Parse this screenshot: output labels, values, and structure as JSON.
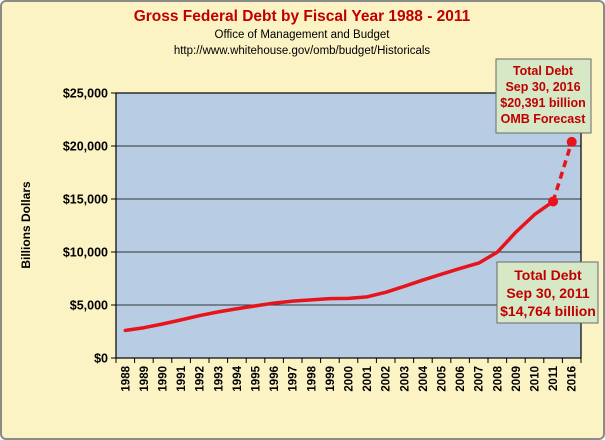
{
  "colors": {
    "background": "#fbf3c4",
    "plot_area": "#b8cce4",
    "line": "#e8141b",
    "callout_bg": "#d6e8c6",
    "callout_text": "#c00000",
    "title": "#c00000"
  },
  "chart_data": {
    "type": "line",
    "title": "Gross Federal Debt by Fiscal Year 1988 - 2011",
    "subtitle_lines": [
      "Office of Management and Budget",
      "http://www.whitehouse.gov/omb/budget/Historicals"
    ],
    "xlabel": "",
    "ylabel": "Billions Dollars",
    "ylim": [
      0,
      25000
    ],
    "y_ticks": [
      0,
      5000,
      10000,
      15000,
      20000,
      25000
    ],
    "y_tick_labels": [
      "$0",
      "$5,000",
      "$10,000",
      "$15,000",
      "$20,000",
      "$25,000"
    ],
    "categories": [
      "1988",
      "1989",
      "1990",
      "1991",
      "1992",
      "1993",
      "1994",
      "1995",
      "1996",
      "1997",
      "1998",
      "1999",
      "2000",
      "2001",
      "2002",
      "2003",
      "2004",
      "2005",
      "2006",
      "2007",
      "2008",
      "2009",
      "2010",
      "2011",
      "2016"
    ],
    "grid": true,
    "series": [
      {
        "values": [
          2602,
          2857,
          3207,
          3598,
          4001,
          4351,
          4643,
          4921,
          5181,
          5369,
          5478,
          5605,
          5628,
          5769,
          6198,
          6760,
          7355,
          7905,
          8451,
          8951,
          9986,
          11876,
          13529,
          14764,
          null
        ],
        "style": "solid"
      },
      {
        "values": [
          null,
          null,
          null,
          null,
          null,
          null,
          null,
          null,
          null,
          null,
          null,
          null,
          null,
          null,
          null,
          null,
          null,
          null,
          null,
          null,
          null,
          null,
          null,
          14764,
          20391
        ],
        "style": "dashed"
      }
    ],
    "annotations": [
      {
        "lines": [
          "Total Debt",
          "Sep 30, 2016",
          "$20,391 billion",
          "OMB Forecast"
        ],
        "category": "2016",
        "value": 20391
      },
      {
        "lines": [
          "Total Debt",
          "Sep 30, 2011",
          "$14,764 billion"
        ],
        "category": "2011",
        "value": 14764
      }
    ]
  }
}
